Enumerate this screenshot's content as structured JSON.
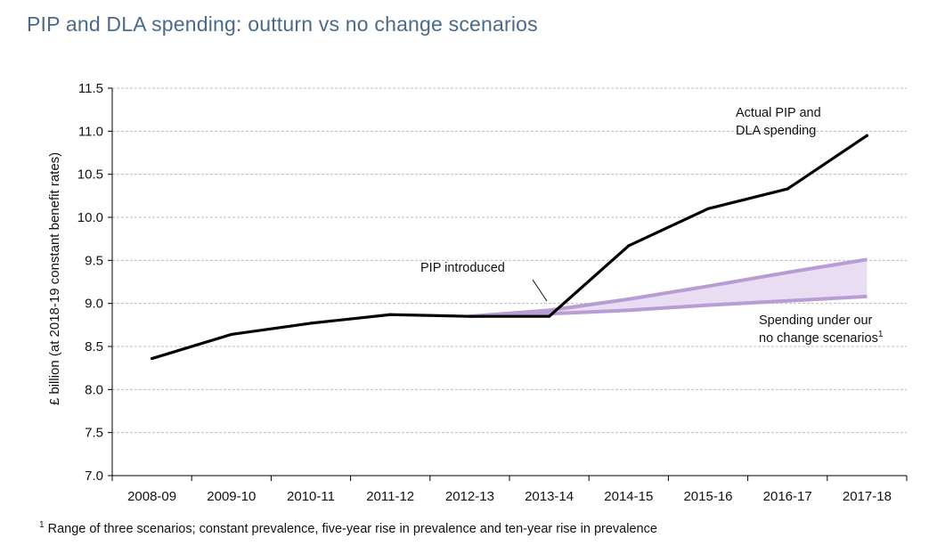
{
  "title": "PIP and DLA spending: outturn vs no change scenarios",
  "footnote": {
    "marker": "1",
    "text": " Range of three scenarios; constant prevalence, five-year rise in prevalence and ten-year rise in prevalence"
  },
  "chart_data": {
    "type": "line",
    "title": "PIP and DLA spending: outturn vs no change scenarios",
    "ylabel": "£ billion (at 2018-19 constant benefit rates)",
    "xlabel": "",
    "ylim": [
      7.0,
      11.5
    ],
    "yticks": [
      "7.0",
      "7.5",
      "8.0",
      "8.5",
      "9.0",
      "9.5",
      "10.0",
      "10.5",
      "11.0",
      "11.5"
    ],
    "categories": [
      "2008-09",
      "2009-10",
      "2010-11",
      "2011-12",
      "2012-13",
      "2013-14",
      "2014-15",
      "2015-16",
      "2016-17",
      "2017-18"
    ],
    "grid": "horizontal dashed",
    "series": [
      {
        "name": "Actual PIP and DLA spending",
        "color": "#000000",
        "values": [
          8.36,
          8.64,
          8.77,
          8.87,
          8.85,
          8.85,
          9.67,
          10.1,
          10.33,
          10.95
        ]
      }
    ],
    "band": {
      "name": "Spending under our no change scenarios",
      "color": "#b89cd4",
      "fill": "#e8ddf2",
      "start_index": 4,
      "upper": [
        8.85,
        8.92,
        9.05,
        9.2,
        9.36,
        9.51
      ],
      "lower": [
        8.85,
        8.88,
        8.92,
        8.98,
        9.03,
        9.08
      ]
    },
    "annotations": {
      "actual_line1": "Actual PIP and",
      "actual_line2": "DLA spending",
      "pip_introduced": "PIP introduced",
      "scenario_line1": "Spending under our",
      "scenario_line2": "no change scenarios",
      "scenario_sup": "1"
    }
  }
}
